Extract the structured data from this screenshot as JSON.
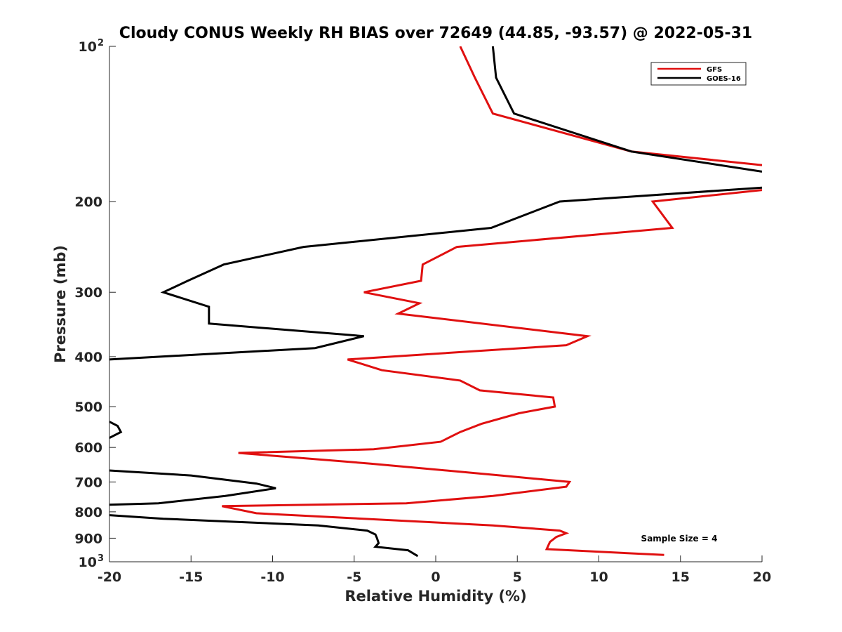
{
  "chart_data": {
    "type": "line",
    "title": "Cloudy CONUS Weekly RH BIAS over 72649 (44.85, -93.57) @ 2022-05-31",
    "xlabel": "Relative Humidity (%)",
    "ylabel": "Pressure (mb)",
    "xlim": [
      -20,
      20
    ],
    "ylim": [
      100,
      1000
    ],
    "y_scale": "log",
    "y_reversed": true,
    "grid": false,
    "legend_position": "top-right",
    "x_ticks": [
      -20,
      -15,
      -10,
      -5,
      0,
      5,
      10,
      15,
      20
    ],
    "x_tick_labels": [
      "-20",
      "-15",
      "-10",
      "-5",
      "0",
      "5",
      "10",
      "15",
      "20"
    ],
    "y_ticks": [
      {
        "value": 100,
        "label": "10",
        "exponent": "2"
      },
      {
        "value": 200,
        "label": "200"
      },
      {
        "value": 300,
        "label": "300"
      },
      {
        "value": 400,
        "label": "400"
      },
      {
        "value": 500,
        "label": "500"
      },
      {
        "value": 600,
        "label": "600"
      },
      {
        "value": 700,
        "label": "700"
      },
      {
        "value": 800,
        "label": "800"
      },
      {
        "value": 900,
        "label": "900"
      },
      {
        "value": 1000,
        "label": "10",
        "exponent": "3"
      }
    ],
    "annotation": "Sample Size = 4",
    "series": [
      {
        "name": "GFS",
        "color": "#e01010",
        "points": [
          [
            1.5,
            100
          ],
          [
            2.4,
            115
          ],
          [
            3.5,
            135
          ],
          [
            12.0,
            160
          ],
          [
            20,
            170
          ],
          [
            null,
            180
          ],
          [
            20,
            190
          ],
          [
            13.3,
            200
          ],
          [
            14.5,
            225
          ],
          [
            1.3,
            245
          ],
          [
            -0.8,
            265
          ],
          [
            -0.9,
            285
          ],
          [
            -4.4,
            300
          ],
          [
            -1.0,
            315
          ],
          [
            -2.3,
            330
          ],
          [
            9.3,
            365
          ],
          [
            8.0,
            380
          ],
          [
            -5.4,
            405
          ],
          [
            -3.3,
            425
          ],
          [
            1.5,
            445
          ],
          [
            2.7,
            465
          ],
          [
            7.2,
            480
          ],
          [
            7.3,
            500
          ],
          [
            5.1,
            515
          ],
          [
            2.8,
            540
          ],
          [
            1.5,
            560
          ],
          [
            0.3,
            585
          ],
          [
            -3.8,
            605
          ],
          [
            -12.1,
            615
          ],
          [
            -4.0,
            645
          ],
          [
            4.0,
            680
          ],
          [
            8.2,
            700
          ],
          [
            8.0,
            715
          ],
          [
            3.5,
            745
          ],
          [
            -1.8,
            770
          ],
          [
            -13.1,
            780
          ],
          [
            -11.0,
            805
          ],
          [
            3.5,
            850
          ],
          [
            7.6,
            870
          ],
          [
            8.0,
            880
          ],
          [
            7.4,
            895
          ],
          [
            7.0,
            915
          ],
          [
            6.9,
            930
          ],
          [
            6.8,
            945
          ],
          [
            14.0,
            970
          ]
        ]
      },
      {
        "name": "GOES-16",
        "color": "#000000",
        "points": [
          [
            3.5,
            100
          ],
          [
            3.7,
            115
          ],
          [
            4.8,
            135
          ],
          [
            12.0,
            160
          ],
          [
            20,
            175
          ],
          [
            null,
            182
          ],
          [
            20,
            188
          ],
          [
            7.6,
            200
          ],
          [
            3.4,
            225
          ],
          [
            -8.1,
            245
          ],
          [
            -13.0,
            265
          ],
          [
            -15.2,
            285
          ],
          [
            -16.7,
            300
          ],
          [
            -13.9,
            320
          ],
          [
            -13.9,
            345
          ],
          [
            -4.4,
            365
          ],
          [
            -7.4,
            385
          ],
          [
            -20,
            405
          ],
          [
            null,
            500
          ],
          [
            -20,
            535
          ],
          [
            -19.5,
            545
          ],
          [
            -19.3,
            560
          ],
          [
            -20,
            575
          ],
          [
            null,
            620
          ],
          [
            -20,
            665
          ],
          [
            -15.0,
            680
          ],
          [
            -11.0,
            705
          ],
          [
            -9.8,
            720
          ],
          [
            -12.9,
            745
          ],
          [
            -17.0,
            770
          ],
          [
            -20,
            775
          ],
          [
            null,
            800
          ],
          [
            -20,
            812
          ],
          [
            -16.7,
            825
          ],
          [
            -7.2,
            850
          ],
          [
            -4.2,
            870
          ],
          [
            -3.7,
            885
          ],
          [
            -3.6,
            900
          ],
          [
            -3.5,
            920
          ],
          [
            -3.7,
            935
          ],
          [
            -1.7,
            950
          ],
          [
            -1.1,
            975
          ]
        ]
      }
    ]
  }
}
